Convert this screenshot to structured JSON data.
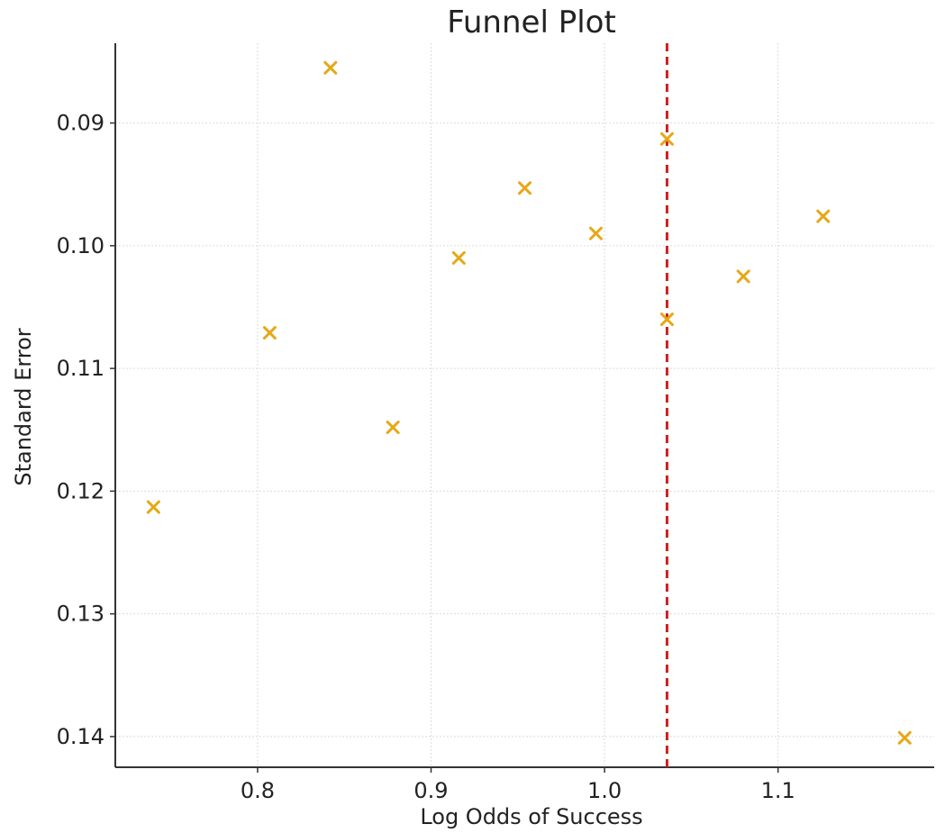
{
  "chart_data": {
    "type": "scatter",
    "title": "Funnel Plot",
    "xlabel": "Log Odds of Success",
    "ylabel": "Standard Error",
    "xlim": [
      0.718,
      1.19
    ],
    "ylim": [
      0.0835,
      0.1425
    ],
    "y_inverted": true,
    "grid": true,
    "x_ticks": [
      "0.8",
      "0.9",
      "1.0",
      "1.1"
    ],
    "y_ticks": [
      "0.09",
      "0.10",
      "0.11",
      "0.12",
      "0.13",
      "0.14"
    ],
    "series": [
      {
        "marker": "x",
        "color": "#E6A817",
        "points": [
          {
            "x": 0.842,
            "y": 0.0855
          },
          {
            "x": 1.036,
            "y": 0.0913
          },
          {
            "x": 0.954,
            "y": 0.0953
          },
          {
            "x": 1.126,
            "y": 0.0976
          },
          {
            "x": 0.995,
            "y": 0.099
          },
          {
            "x": 0.916,
            "y": 0.101
          },
          {
            "x": 1.08,
            "y": 0.1025
          },
          {
            "x": 1.036,
            "y": 0.106
          },
          {
            "x": 0.807,
            "y": 0.1071
          },
          {
            "x": 0.878,
            "y": 0.1148
          },
          {
            "x": 0.74,
            "y": 0.1213
          },
          {
            "x": 1.173,
            "y": 0.1401
          }
        ]
      }
    ],
    "reference_line": {
      "orientation": "vertical",
      "x": 1.036,
      "style": "dashed",
      "color": "#CC1F1F"
    }
  }
}
